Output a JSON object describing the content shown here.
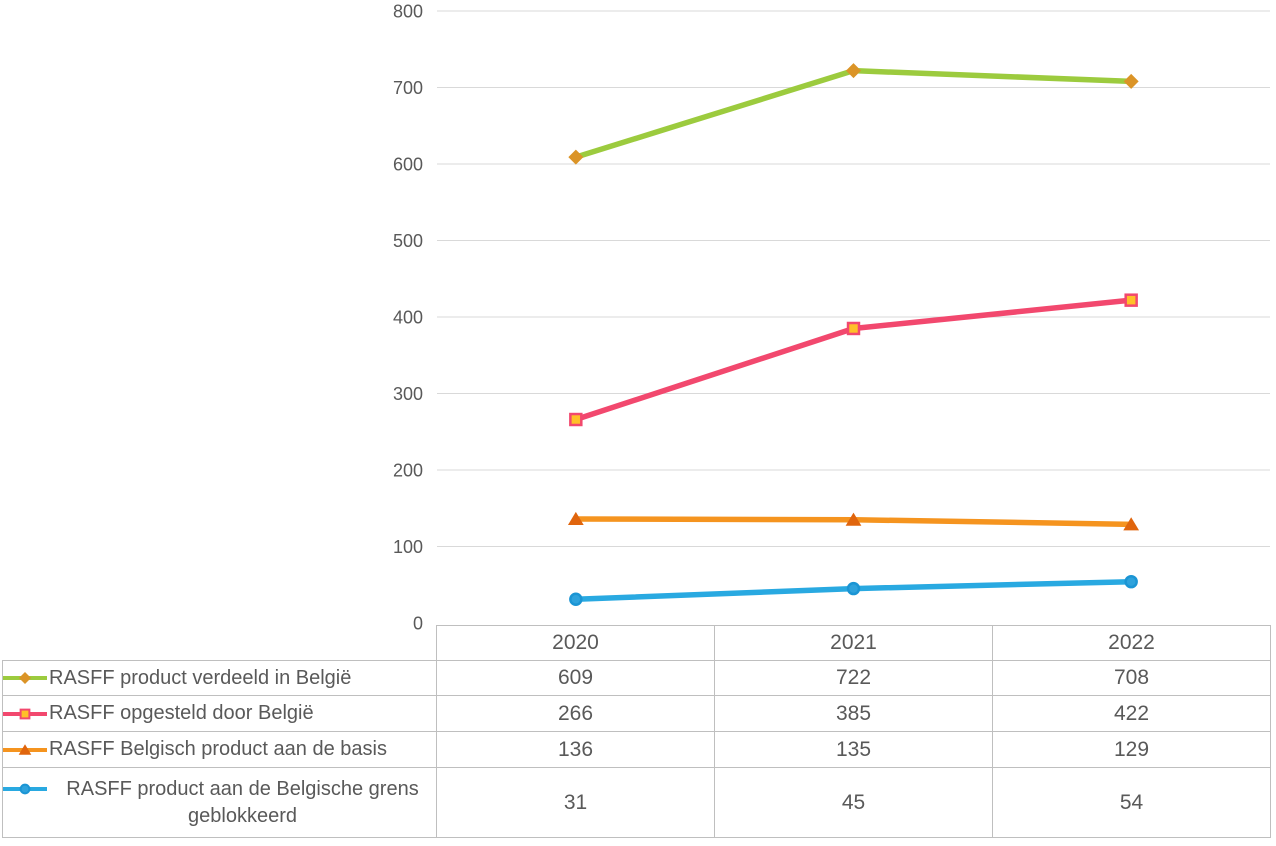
{
  "chart_data": {
    "type": "line",
    "title": "",
    "xlabel": "",
    "ylabel": "",
    "categories": [
      "2020",
      "2021",
      "2022"
    ],
    "series": [
      {
        "name": "RASFF product verdeeld in België",
        "values": [
          609,
          722,
          708
        ],
        "line_color": "#9CCB3E",
        "marker": "diamond",
        "marker_fill": "#DB9427",
        "marker_stroke": "#DB9427"
      },
      {
        "name": "RASFF opgesteld door België",
        "values": [
          266,
          385,
          422
        ],
        "line_color": "#F2486E",
        "marker": "square",
        "marker_fill": "#FFC028",
        "marker_stroke": "#F2486E"
      },
      {
        "name": "RASFF Belgisch product aan de basis",
        "values": [
          136,
          135,
          129
        ],
        "line_color": "#F5941F",
        "marker": "triangle",
        "marker_fill": "#E0650D",
        "marker_stroke": "#E0650D"
      },
      {
        "name": "RASFF product aan de Belgische grens geblokkeerd",
        "values": [
          31,
          45,
          54
        ],
        "line_color": "#29A9E1",
        "marker": "circle",
        "marker_fill": "#2EA2DC",
        "marker_stroke": "#1B95D4"
      }
    ],
    "ylim": [
      0,
      800
    ],
    "ytick_step": 100,
    "yticks": [
      0,
      100,
      200,
      300,
      400,
      500,
      600,
      700,
      800
    ],
    "grid": true,
    "legend_position": "data-table-left-column"
  },
  "colors": {
    "grid": "#D9D9D9",
    "table_border": "#BFBFBF",
    "text": "#595959",
    "background": "#FFFFFF"
  }
}
